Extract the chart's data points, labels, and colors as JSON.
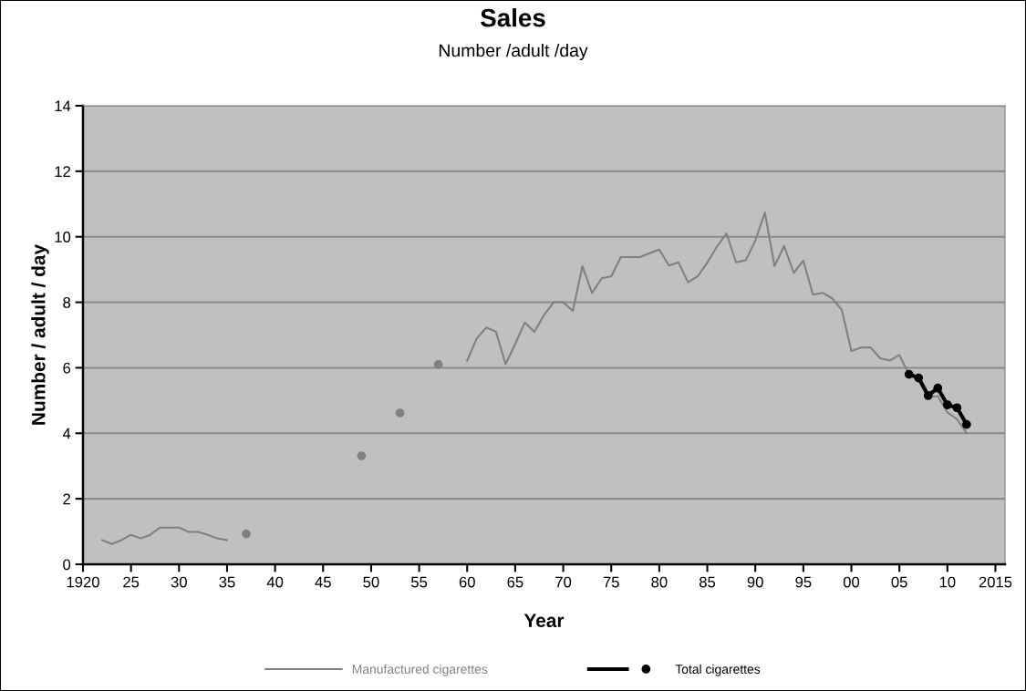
{
  "chart_data": {
    "type": "line",
    "title": "Sales",
    "subtitle": "Number /adult /day",
    "xlabel": "Year",
    "ylabel": "Number / adult / day",
    "xlim": [
      1920,
      2016
    ],
    "xticks": [
      1920,
      {
        "value": 1925,
        "label": "25"
      },
      {
        "value": 1930,
        "label": "30"
      },
      {
        "value": 1935,
        "label": "35"
      },
      {
        "value": 1940,
        "label": "40"
      },
      {
        "value": 1945,
        "label": "45"
      },
      {
        "value": 1950,
        "label": "50"
      },
      {
        "value": 1955,
        "label": "55"
      },
      {
        "value": 1960,
        "label": "60"
      },
      {
        "value": 1965,
        "label": "65"
      },
      {
        "value": 1970,
        "label": "70"
      },
      {
        "value": 1975,
        "label": "75"
      },
      {
        "value": 1980,
        "label": "80"
      },
      {
        "value": 1985,
        "label": "85"
      },
      {
        "value": 1990,
        "label": "90"
      },
      {
        "value": 1995,
        "label": "95"
      },
      {
        "value": 2000,
        "label": "00"
      },
      {
        "value": 2005,
        "label": "05"
      },
      {
        "value": 2010,
        "label": "10"
      },
      2015
    ],
    "ylim": [
      0,
      14
    ],
    "yticks": [
      0,
      2,
      4,
      6,
      8,
      10,
      12,
      14
    ],
    "grid": "y",
    "legend": "bottom",
    "series": [
      {
        "name": "Manufactured cigarettes",
        "color": "#808080",
        "marker": "none",
        "x": [
          1922,
          1923,
          1924,
          1925,
          1926,
          1927,
          1928,
          1929,
          1930,
          1931,
          1932,
          1933,
          1934,
          1935,
          1936,
          1937,
          1938,
          1949,
          1950,
          1953,
          1954,
          1957,
          1958,
          1960,
          1961,
          1962,
          1963,
          1964,
          1965,
          1966,
          1967,
          1968,
          1969,
          1970,
          1971,
          1972,
          1973,
          1974,
          1975,
          1976,
          1977,
          1978,
          1979,
          1980,
          1981,
          1982,
          1983,
          1984,
          1985,
          1986,
          1987,
          1988,
          1989,
          1990,
          1991,
          1992,
          1993,
          1994,
          1995,
          1996,
          1997,
          1998,
          1999,
          2000,
          2001,
          2002,
          2003,
          2004,
          2005,
          2006,
          2007,
          2008,
          2009,
          2010,
          2011,
          2012
        ],
        "values": [
          0.74,
          0.62,
          0.74,
          0.9,
          0.79,
          0.9,
          1.12,
          1.12,
          1.12,
          0.99,
          0.99,
          0.9,
          0.79,
          0.74,
          null,
          0.93,
          null,
          3.31,
          null,
          4.62,
          null,
          6.1,
          null,
          6.22,
          6.9,
          7.23,
          7.1,
          6.11,
          6.73,
          7.38,
          7.1,
          7.61,
          8.0,
          8.0,
          7.74,
          9.1,
          8.28,
          8.73,
          8.79,
          9.38,
          9.38,
          9.38,
          9.5,
          9.61,
          9.12,
          9.22,
          8.61,
          8.79,
          9.21,
          9.7,
          10.1,
          9.22,
          9.28,
          9.88,
          10.74,
          9.11,
          9.72,
          8.9,
          9.27,
          8.23,
          8.29,
          8.12,
          7.77,
          6.51,
          6.62,
          6.62,
          6.29,
          6.22,
          6.39,
          5.8,
          5.74,
          5.13,
          5.13,
          4.64,
          4.43,
          4.01
        ]
      },
      {
        "name": "Total cigarettes",
        "color": "#000000",
        "marker": "circle",
        "x": [
          2006,
          2007,
          2008,
          2009,
          2010,
          2011,
          2012
        ],
        "values": [
          5.8,
          5.69,
          5.15,
          5.38,
          4.87,
          4.78,
          4.27
        ]
      }
    ]
  }
}
